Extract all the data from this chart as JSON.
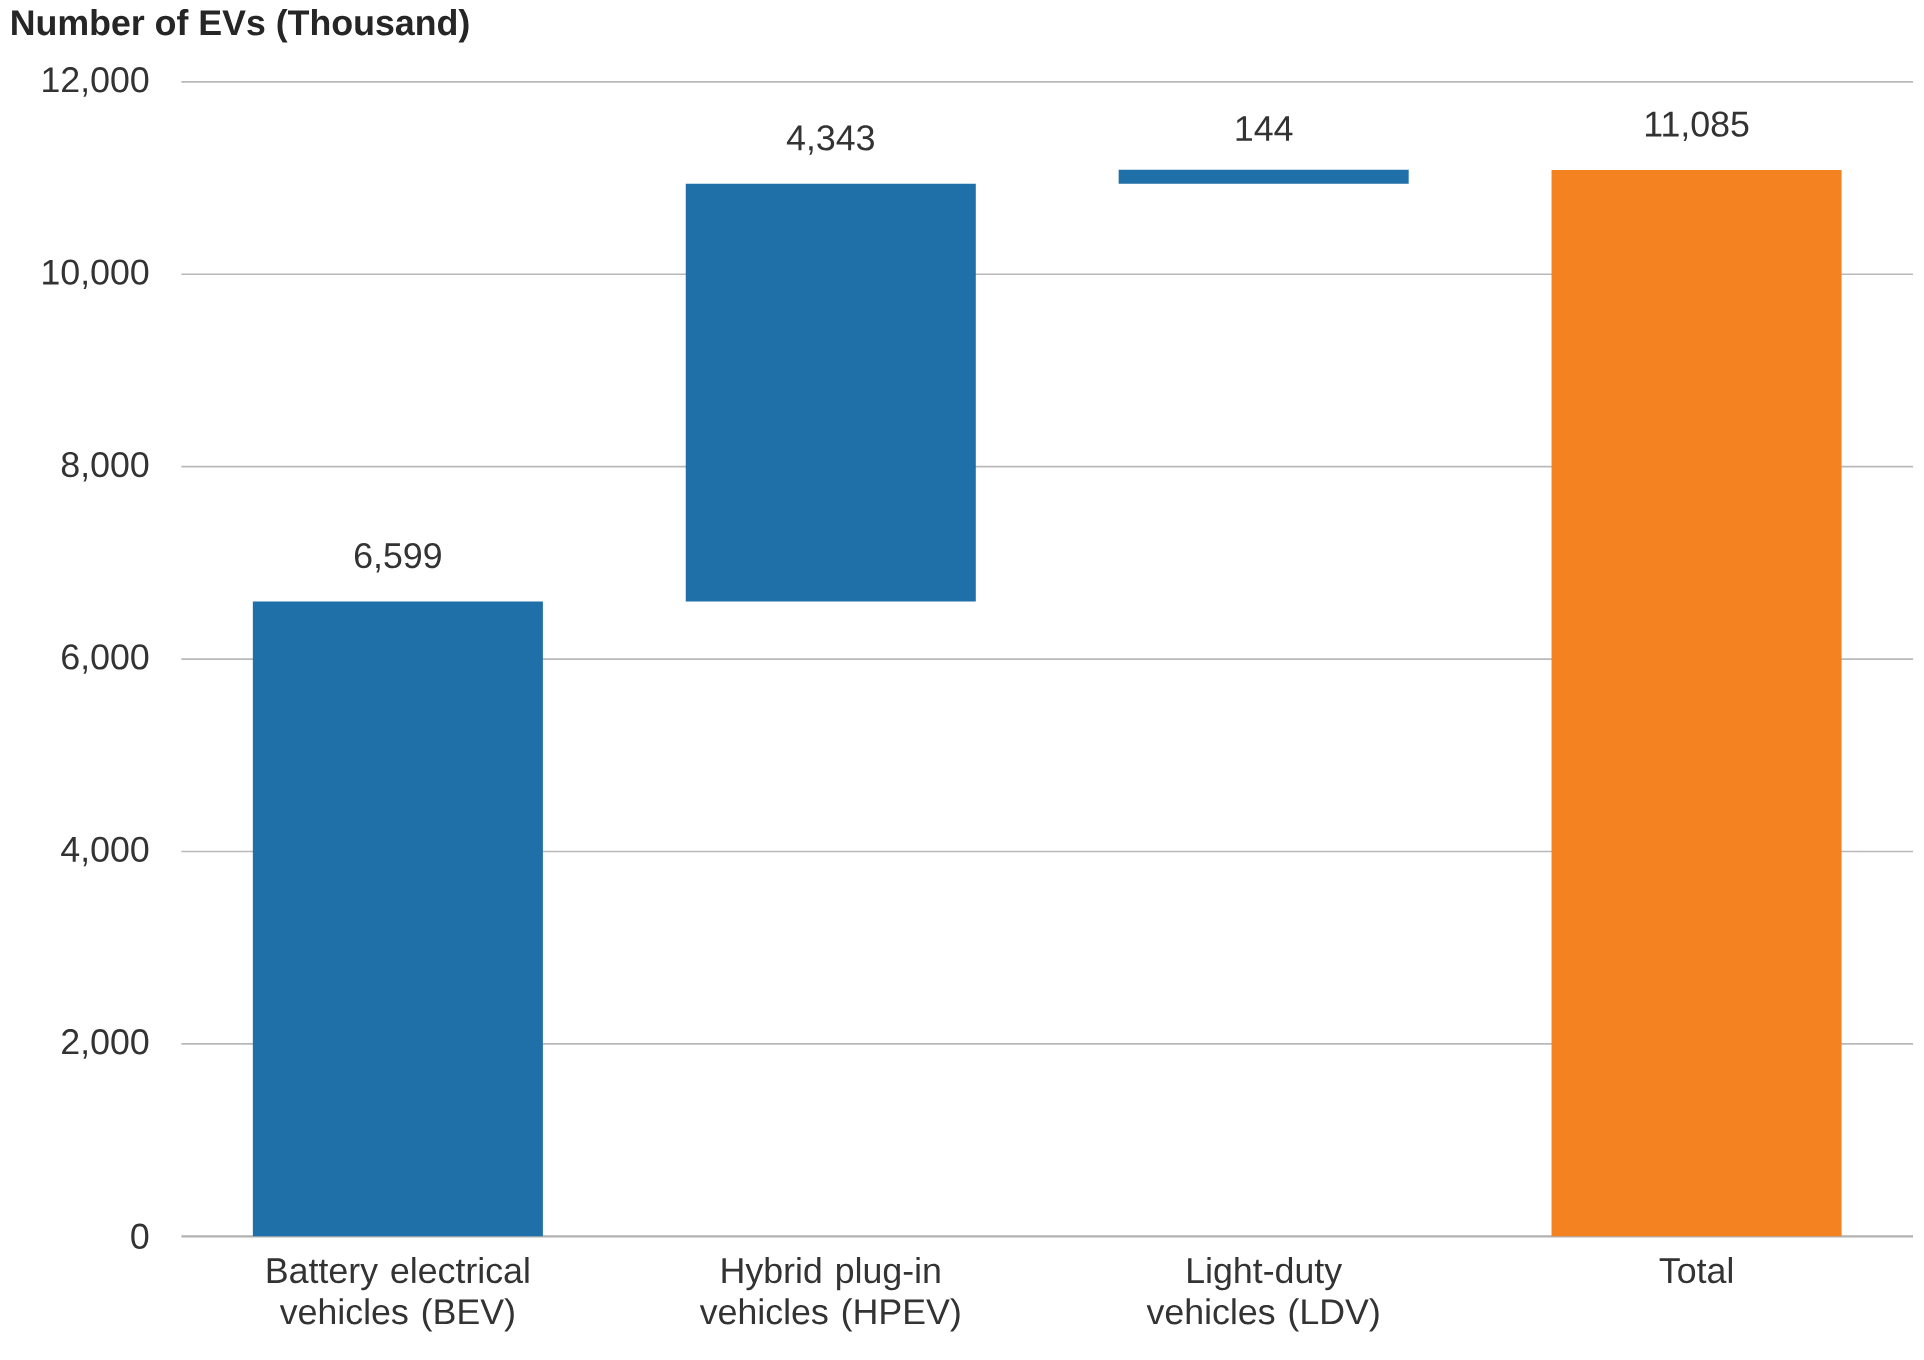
{
  "chart_data": {
    "type": "bar",
    "ylabel": "Number of EVs (Thousand)",
    "categories": [
      "Battery electrical vehicles (BEV)",
      "Hybrid plug-in vehicles (HPEV)",
      "Light-duty vehicles (LDV)",
      "Total"
    ],
    "values": [
      6599,
      4343,
      144,
      11085
    ],
    "base": [
      0,
      6599,
      10942,
      0
    ],
    "colors": [
      "#1f6fa8",
      "#1f6fa8",
      "#1f6fa8",
      "#f58220"
    ],
    "value_labels": [
      "6,599",
      "4,343",
      "144",
      "11,085"
    ],
    "ylim": [
      0,
      12000
    ],
    "yticks": [
      {
        "value": 0,
        "label": "0"
      },
      {
        "value": 2000,
        "label": "2,000"
      },
      {
        "value": 4000,
        "label": "4,000"
      },
      {
        "value": 6000,
        "label": "6,000"
      },
      {
        "value": 8000,
        "label": "8,000"
      },
      {
        "value": 10000,
        "label": "10,000"
      },
      {
        "value": 12000,
        "label": "12,000"
      }
    ],
    "grid": "y"
  }
}
